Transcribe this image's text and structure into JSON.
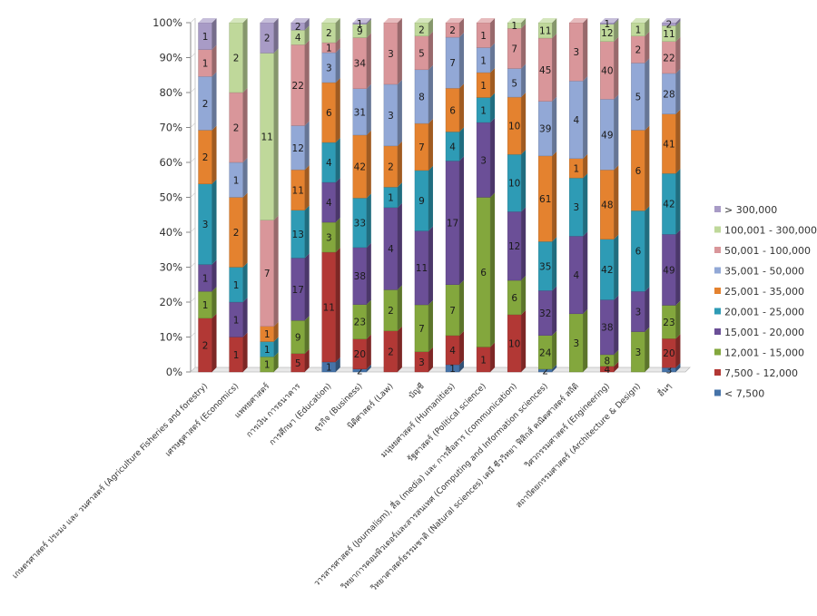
{
  "chart_data": {
    "type": "bar",
    "stacking": "percent",
    "ylim": [
      0,
      100
    ],
    "y_ticks": [
      "0%",
      "10%",
      "20%",
      "30%",
      "40%",
      "50%",
      "60%",
      "70%",
      "80%",
      "90%",
      "100%"
    ],
    "legend_position": "right",
    "grid": false,
    "categories": [
      "เกษตรศาสตร์ ประมง และ วนศาสตร์ (Agriculture Fisheries and forestry)",
      "เศรษฐศาสตร์ (Economics)",
      "แพทยศาสตร์",
      "การเงิน การธนาคาร",
      "การศึกษา (Education)",
      "ธุรกิจ (Business)",
      "นิติศาสตร์ (Law)",
      "บัญชี",
      "มนุษยศาสตร์ (Humanities)",
      "รัฐศาสตร์ (Political science)",
      "วารสารศาสตร์ (Journalism), สื่อ (media) และ การสื่อสาร (communication)",
      "วิทยาการคอมพิวเตอร์และสารสนเทศ (Computing and Information sciences)",
      "วิทยาศาสตร์ธรรมชาติ (Natural sciences) เคมี ชีววิทยา ฟิสิกส์ คณิตศาสตร์ สถิติ",
      "วิศวกรรมศาสตร์ (Engineering)",
      "สถาปัตยกรรมศาสตร์ (Architecture & Design)",
      "อื่นๆ"
    ],
    "series": [
      {
        "name": "< 7,500",
        "color": "#4673a8",
        "values": [
          0,
          0,
          0,
          0,
          1,
          2,
          0,
          0,
          1,
          0,
          0,
          2,
          0,
          0,
          0,
          3
        ]
      },
      {
        "name": "7,500 - 12,000",
        "color": "#b23835",
        "values": [
          2,
          1,
          0,
          5,
          11,
          20,
          2,
          3,
          4,
          1,
          10,
          0,
          0,
          4,
          0,
          20
        ]
      },
      {
        "name": "12,001 - 15,000",
        "color": "#83a73d",
        "values": [
          1,
          0,
          1,
          9,
          3,
          23,
          2,
          7,
          7,
          6,
          6,
          24,
          3,
          8,
          3,
          23
        ]
      },
      {
        "name": "15,001 - 20,000",
        "color": "#6b4f97",
        "values": [
          1,
          1,
          0,
          17,
          4,
          38,
          4,
          11,
          17,
          3,
          12,
          32,
          4,
          38,
          3,
          49
        ]
      },
      {
        "name": "20,001 - 25,000",
        "color": "#2e9bb5",
        "values": [
          3,
          1,
          1,
          13,
          4,
          33,
          1,
          9,
          4,
          1,
          10,
          35,
          3,
          42,
          6,
          42
        ]
      },
      {
        "name": "25,001 - 35,000",
        "color": "#e4822f",
        "values": [
          2,
          2,
          1,
          11,
          6,
          42,
          2,
          7,
          6,
          1,
          10,
          61,
          1,
          48,
          6,
          41
        ]
      },
      {
        "name": "35,001 - 50,000",
        "color": "#92a8d6",
        "values": [
          2,
          1,
          0,
          12,
          3,
          31,
          3,
          8,
          7,
          1,
          5,
          39,
          4,
          49,
          5,
          28
        ]
      },
      {
        "name": "50,001 - 100,000",
        "color": "#d9969a",
        "values": [
          1,
          2,
          7,
          22,
          1,
          34,
          3,
          5,
          2,
          1,
          7,
          45,
          3,
          40,
          2,
          22
        ]
      },
      {
        "name": "100,001 - 300,000",
        "color": "#bfd89a",
        "values": [
          0,
          2,
          11,
          4,
          2,
          9,
          0,
          2,
          0,
          0,
          1,
          11,
          0,
          12,
          1,
          11
        ]
      },
      {
        "name": "> 300,000",
        "color": "#a89bc6",
        "values": [
          1,
          0,
          2,
          2,
          0,
          1,
          0,
          0,
          0,
          0,
          0,
          0,
          0,
          1,
          0,
          2
        ]
      }
    ]
  }
}
